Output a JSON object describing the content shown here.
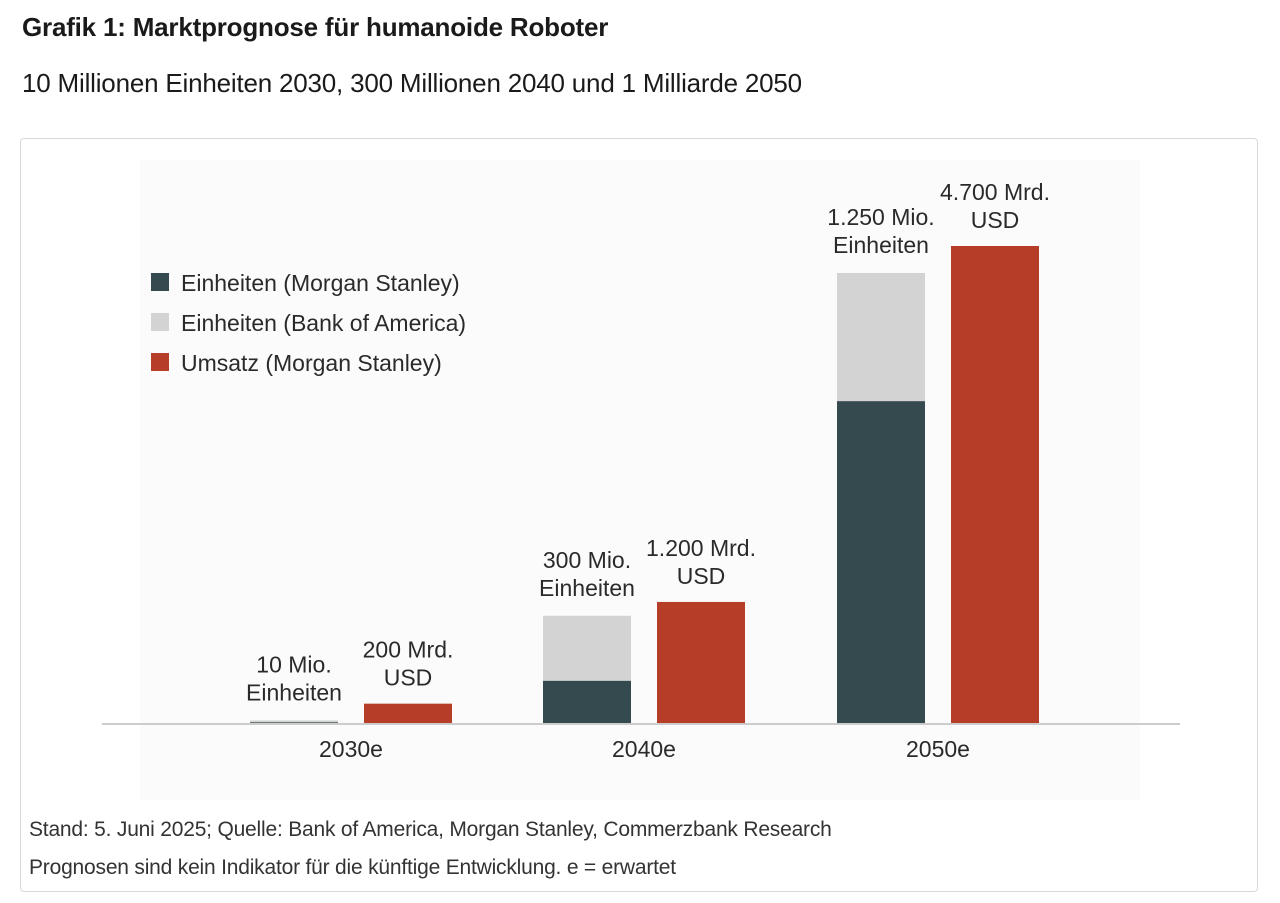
{
  "header": {
    "title": "Grafik 1: Marktprognose für humanoide Roboter",
    "subtitle": "10 Millionen Einheiten 2030, 300 Millionen 2040 und 1 Milliarde 2050"
  },
  "colors": {
    "ms_units": "#354a4f",
    "boa_units": "#d3d3d3",
    "revenue": "#b63d28",
    "axis": "#cccccc"
  },
  "chart_data": {
    "type": "bar",
    "title": "Marktprognose für humanoide Roboter",
    "categories": [
      "2030e",
      "2040e",
      "2050e"
    ],
    "legend": {
      "position": "top-left",
      "entries": [
        "Einheiten (Morgan Stanley)",
        "Einheiten (Bank of America)",
        "Umsatz (Morgan Stanley)"
      ]
    },
    "series": [
      {
        "name": "Einheiten (Morgan Stanley)",
        "unit": "Mio. Einheiten",
        "stack": "units",
        "values": [
          5,
          120,
          895
        ]
      },
      {
        "name": "Einheiten (Bank of America)",
        "unit": "Mio. Einheiten",
        "stack": "units",
        "values": [
          5,
          180,
          355
        ]
      },
      {
        "name": "Umsatz (Morgan Stanley)",
        "unit": "Mrd. USD",
        "stack": "revenue",
        "values": [
          200,
          1200,
          4700
        ]
      }
    ],
    "units_totals": [
      10,
      300,
      1250
    ],
    "data_labels": {
      "units": [
        [
          "10 Mio.",
          "Einheiten"
        ],
        [
          "300 Mio.",
          "Einheiten"
        ],
        [
          "1.250 Mio.",
          "Einheiten"
        ]
      ],
      "revenue": [
        [
          "200 Mrd.",
          "USD"
        ],
        [
          "1.200 Mrd.",
          "USD"
        ],
        [
          "4.700 Mrd.",
          "USD"
        ]
      ]
    },
    "units_ylim": [
      0,
      1250
    ],
    "revenue_ylim": [
      0,
      4700
    ],
    "grid": false
  },
  "footer": {
    "source": "Stand: 5. Juni 2025; Quelle: Bank of America, Morgan Stanley, Commerzbank Research",
    "disclaimer": "Prognosen sind kein Indikator für die künftige Entwicklung. e = erwartet"
  }
}
